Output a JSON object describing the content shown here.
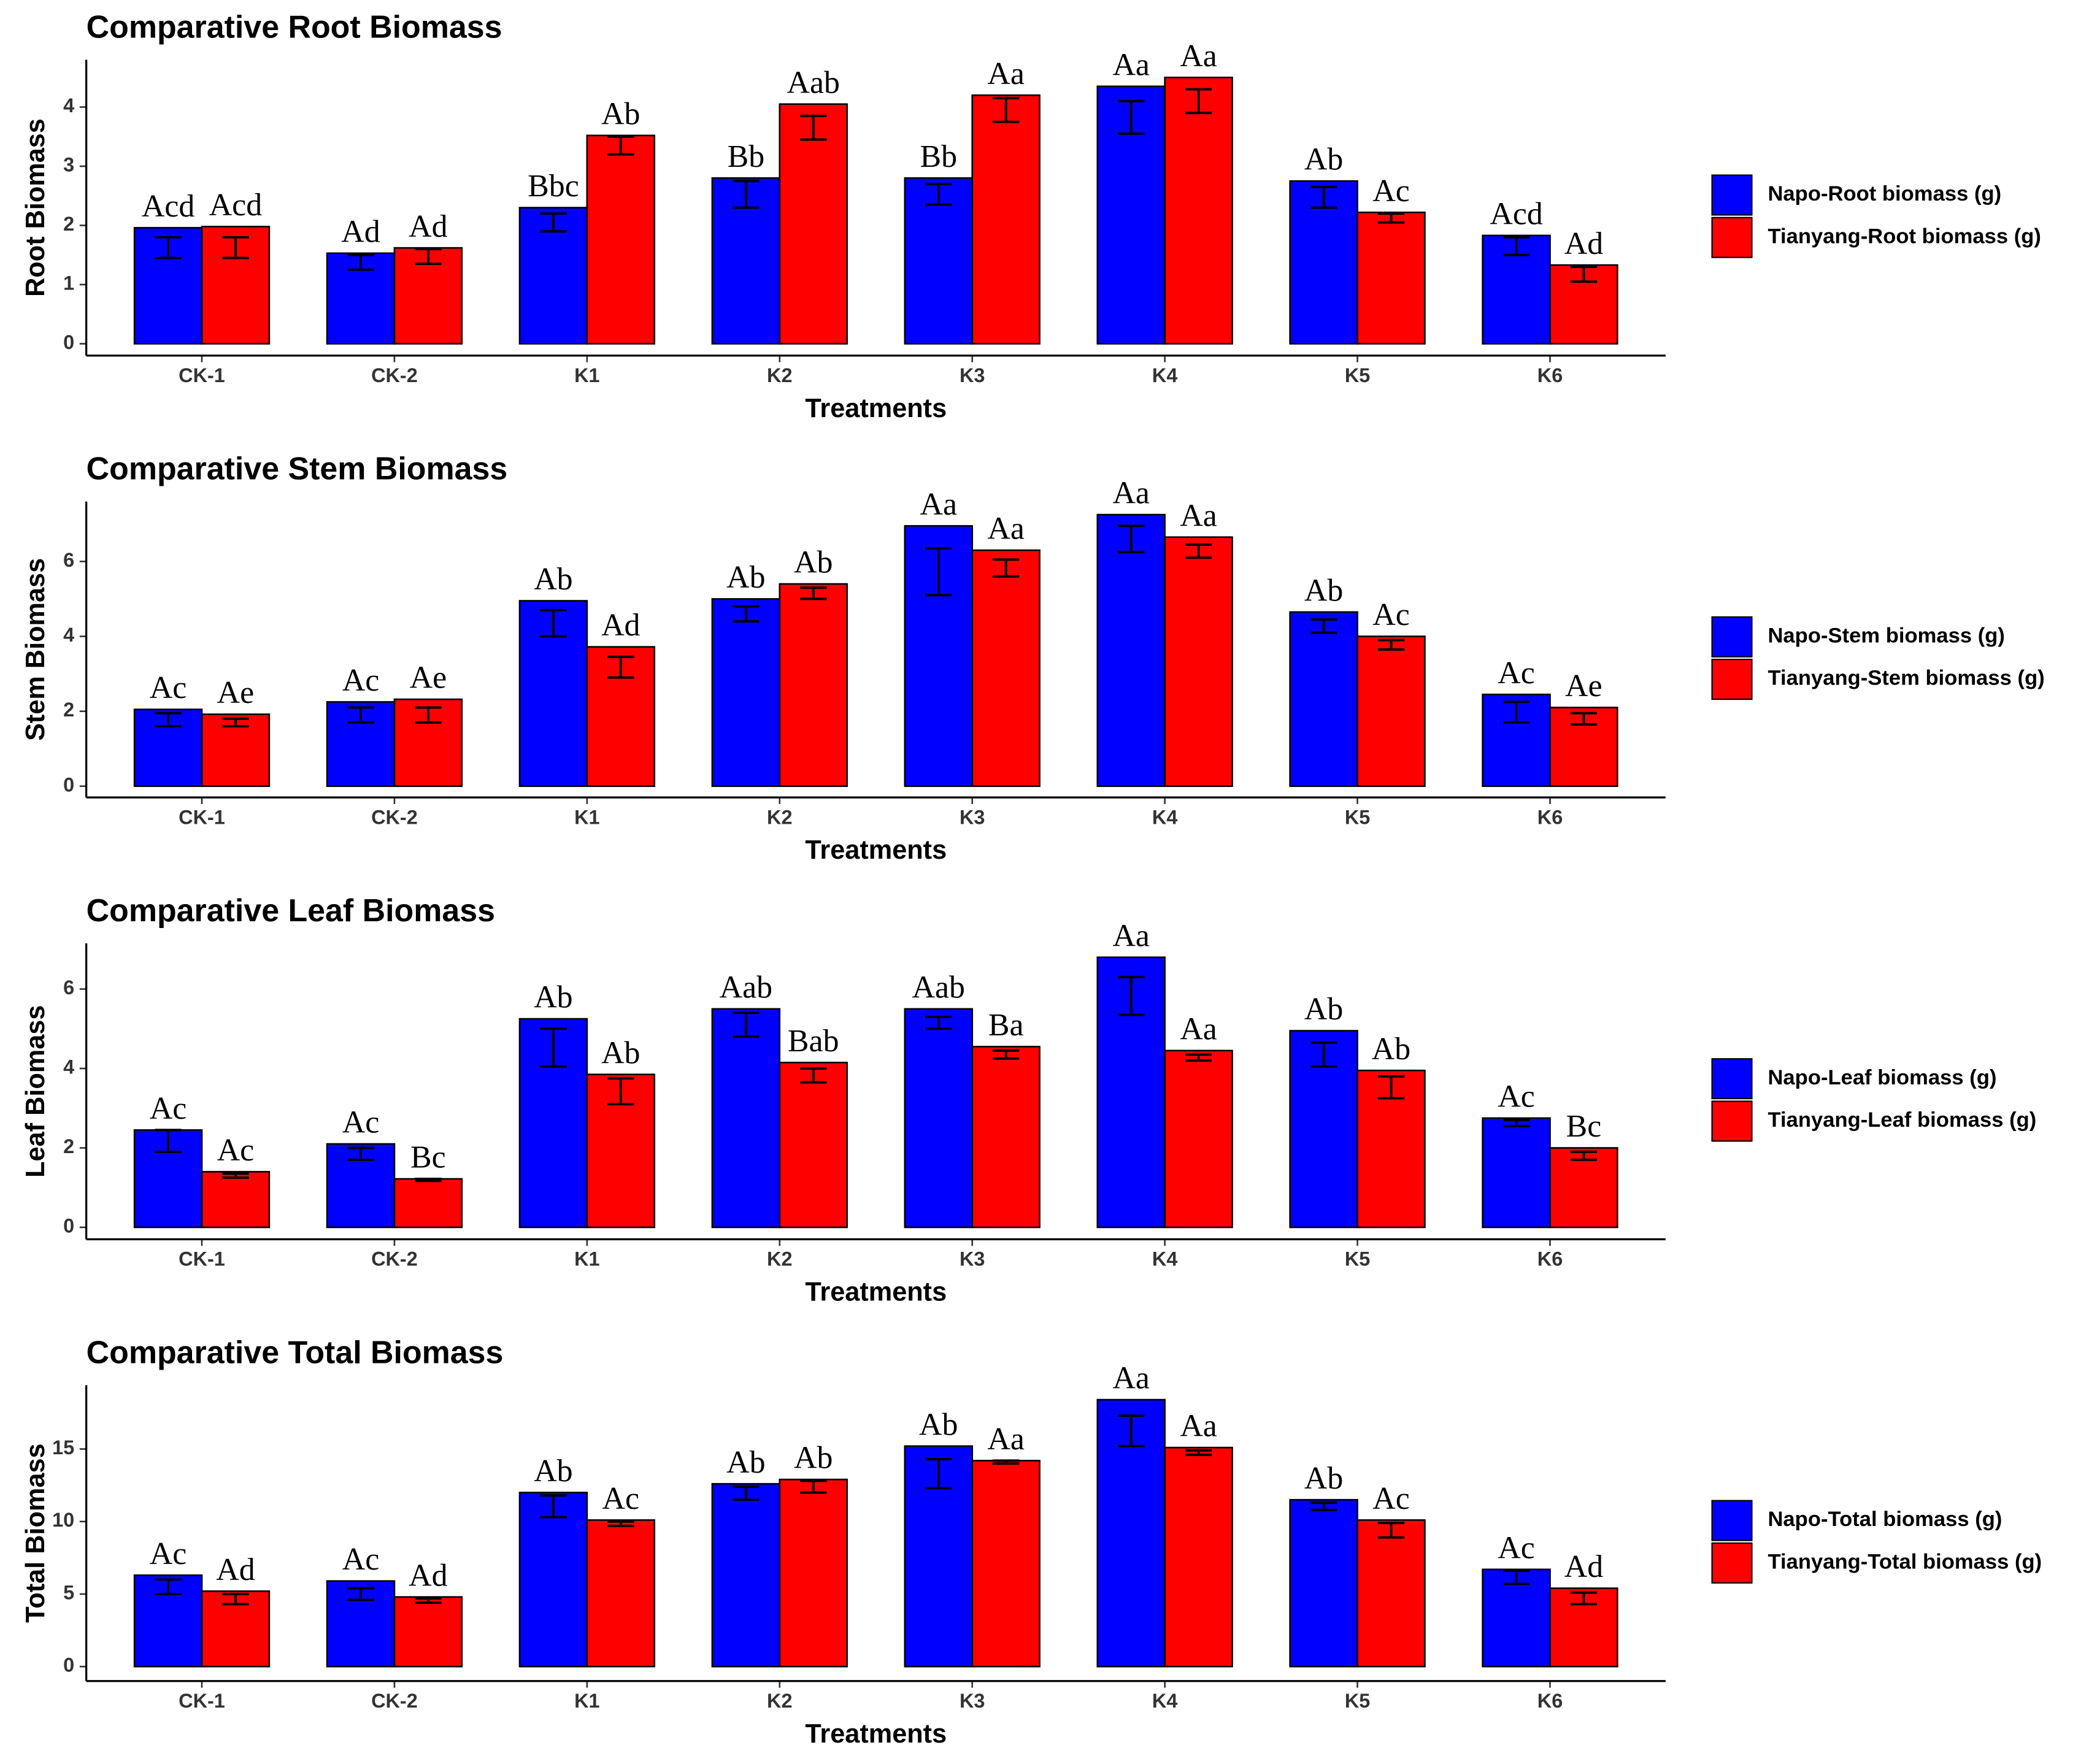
{
  "chart_data": [
    {
      "type": "bar",
      "title": "Comparative Root Biomass",
      "ylabel": "Root Biomass",
      "xlabel": "Treatments",
      "categories": [
        "CK-1",
        "CK-2",
        "K1",
        "K2",
        "K3",
        "K4",
        "K5",
        "K6"
      ],
      "ylim": [
        -0.2,
        4.8
      ],
      "yticks": [
        0,
        1,
        2,
        3,
        4
      ],
      "series": [
        {
          "name": "Napo-Root biomass (g)",
          "color": "#0000ff",
          "values": [
            1.96,
            1.53,
            2.3,
            2.8,
            2.8,
            4.35,
            2.75,
            1.83
          ],
          "error_low": [
            1.45,
            1.25,
            1.9,
            2.3,
            2.35,
            3.55,
            2.3,
            1.5
          ],
          "error_high": [
            1.8,
            1.5,
            2.2,
            2.75,
            2.7,
            4.1,
            2.65,
            1.8
          ],
          "letters": [
            "Acd",
            "Ad",
            "Bbc",
            "Bb",
            "Bb",
            "Aa",
            "Ab",
            "Acd"
          ]
        },
        {
          "name": "Tianyang-Root biomass (g)",
          "color": "#ff0000",
          "values": [
            1.98,
            1.62,
            3.52,
            4.05,
            4.2,
            4.5,
            2.22,
            1.33
          ],
          "error_low": [
            1.45,
            1.35,
            3.2,
            3.45,
            3.75,
            3.9,
            2.05,
            1.05
          ],
          "error_high": [
            1.8,
            1.6,
            3.5,
            3.85,
            4.15,
            4.3,
            2.2,
            1.3
          ],
          "letters": [
            "Acd",
            "Ad",
            "Ab",
            "Aab",
            "Aa",
            "Aa",
            "Ac",
            "Ad"
          ]
        }
      ]
    },
    {
      "type": "bar",
      "title": "Comparative Stem Biomass",
      "ylabel": "Stem Biomass",
      "xlabel": "Treatments",
      "categories": [
        "CK-1",
        "CK-2",
        "K1",
        "K2",
        "K3",
        "K4",
        "K5",
        "K6"
      ],
      "ylim": [
        -0.3,
        7.6
      ],
      "yticks": [
        0,
        2,
        4,
        6
      ],
      "series": [
        {
          "name": "Napo-Stem biomass (g)",
          "color": "#0000ff",
          "values": [
            2.05,
            2.25,
            4.95,
            5.0,
            6.95,
            7.25,
            4.65,
            2.45
          ],
          "error_low": [
            1.6,
            1.7,
            4.0,
            4.4,
            5.1,
            6.25,
            4.1,
            1.7
          ],
          "error_high": [
            1.95,
            2.1,
            4.7,
            4.8,
            6.35,
            6.95,
            4.45,
            2.25
          ],
          "letters": [
            "Ac",
            "Ac",
            "Ab",
            "Ab",
            "Aa",
            "Aa",
            "Ab",
            "Ac"
          ]
        },
        {
          "name": "Tianyang-Stem biomass (g)",
          "color": "#ff0000",
          "values": [
            1.92,
            2.32,
            3.72,
            5.4,
            6.3,
            6.65,
            4.0,
            2.1
          ],
          "error_low": [
            1.6,
            1.7,
            2.9,
            5.0,
            5.6,
            6.1,
            3.65,
            1.65
          ],
          "error_high": [
            1.8,
            2.1,
            3.45,
            5.3,
            6.05,
            6.45,
            3.9,
            1.95
          ],
          "letters": [
            "Ae",
            "Ae",
            "Ad",
            "Ab",
            "Aa",
            "Aa",
            "Ac",
            "Ae"
          ]
        }
      ]
    },
    {
      "type": "bar",
      "title": "Comparative Leaf Biomass",
      "ylabel": "Leaf Biomass",
      "xlabel": "Treatments",
      "categories": [
        "CK-1",
        "CK-2",
        "K1",
        "K2",
        "K3",
        "K4",
        "K5",
        "K6"
      ],
      "ylim": [
        -0.3,
        7.15
      ],
      "yticks": [
        0,
        2,
        4,
        6
      ],
      "series": [
        {
          "name": "Napo-Leaf biomass (g)",
          "color": "#0000ff",
          "values": [
            2.45,
            2.1,
            5.25,
            5.5,
            5.5,
            6.8,
            4.95,
            2.75
          ],
          "error_low": [
            1.9,
            1.7,
            4.05,
            4.8,
            5.0,
            5.35,
            4.05,
            2.55
          ],
          "error_high": [
            2.45,
            2.0,
            5.0,
            5.4,
            5.3,
            6.3,
            4.65,
            2.7
          ],
          "letters": [
            "Ac",
            "Ac",
            "Ab",
            "Aab",
            "Aab",
            "Aa",
            "Ab",
            "Ac"
          ]
        },
        {
          "name": "Tianyang-Leaf biomass (g)",
          "color": "#ff0000",
          "values": [
            1.4,
            1.22,
            3.85,
            4.15,
            4.55,
            4.45,
            3.95,
            2.0
          ],
          "error_low": [
            1.25,
            1.17,
            3.1,
            3.65,
            4.25,
            4.2,
            3.25,
            1.7
          ],
          "error_high": [
            1.35,
            1.22,
            3.75,
            4.0,
            4.45,
            4.35,
            3.8,
            1.9
          ],
          "letters": [
            "Ac",
            "Bc",
            "Ab",
            "Bab",
            "Ba",
            "Aa",
            "Ab",
            "Bc"
          ]
        }
      ]
    },
    {
      "type": "bar",
      "title": "Comparative Total Biomass",
      "ylabel": "Total Biomass",
      "xlabel": "Treatments",
      "categories": [
        "CK-1",
        "CK-2",
        "K1",
        "K2",
        "K3",
        "K4",
        "K5",
        "K6"
      ],
      "ylim": [
        -1,
        19.4
      ],
      "yticks": [
        0,
        5,
        10,
        15
      ],
      "series": [
        {
          "name": "Napo-Total biomass (g)",
          "color": "#0000ff",
          "values": [
            6.3,
            5.9,
            12.0,
            12.6,
            15.2,
            18.4,
            11.5,
            6.7
          ],
          "error_low": [
            5.0,
            4.6,
            10.3,
            11.5,
            12.3,
            15.2,
            10.8,
            5.7
          ],
          "error_high": [
            6.0,
            5.4,
            11.8,
            12.4,
            14.3,
            17.3,
            11.3,
            6.6
          ],
          "letters": [
            "Ac",
            "Ac",
            "Ab",
            "Ab",
            "Ab",
            "Aa",
            "Ab",
            "Ac"
          ]
        },
        {
          "name": "Tianyang-Total biomass (g)",
          "color": "#ff0000",
          "values": [
            5.2,
            4.8,
            10.1,
            12.9,
            14.2,
            15.1,
            10.1,
            5.4
          ],
          "error_low": [
            4.3,
            4.4,
            9.7,
            12.0,
            14.0,
            14.6,
            8.9,
            4.3
          ],
          "error_high": [
            5.0,
            4.7,
            10.0,
            12.8,
            14.2,
            14.9,
            9.9,
            5.1
          ],
          "letters": [
            "Ad",
            "Ad",
            "Ac",
            "Ab",
            "Aa",
            "Aa",
            "Ac",
            "Ad"
          ]
        }
      ]
    }
  ]
}
